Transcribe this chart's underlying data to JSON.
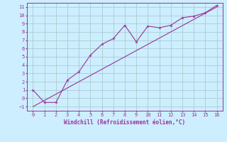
{
  "xlabel": "Windchill (Refroidissement éolien,°C)",
  "scatter_x": [
    0,
    1,
    2,
    3,
    4,
    5,
    6,
    7,
    8,
    9,
    10,
    11,
    12,
    13,
    14,
    15,
    16
  ],
  "scatter_y": [
    1,
    -0.5,
    -0.5,
    2.2,
    3.2,
    5.2,
    6.5,
    7.2,
    8.8,
    6.8,
    8.7,
    8.5,
    8.8,
    9.7,
    9.9,
    10.3,
    11.2
  ],
  "line_x": [
    0,
    16
  ],
  "line_y": [
    -1,
    11
  ],
  "color": "#993399",
  "bg_color": "#cceeff",
  "grid_color": "#aacccc",
  "xlim": [
    -0.5,
    16.5
  ],
  "ylim": [
    -1.5,
    11.5
  ],
  "xticks": [
    0,
    1,
    2,
    3,
    4,
    5,
    6,
    7,
    8,
    9,
    10,
    11,
    12,
    13,
    14,
    15,
    16
  ],
  "yticks": [
    -1,
    0,
    1,
    2,
    3,
    4,
    5,
    6,
    7,
    8,
    9,
    10,
    11
  ]
}
